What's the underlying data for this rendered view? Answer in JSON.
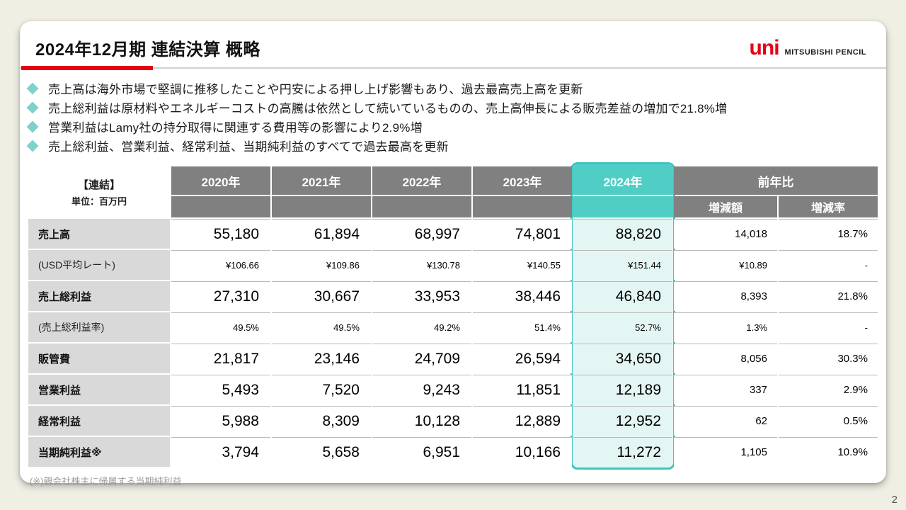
{
  "slide": {
    "title": "2024年12月期 連結決算 概略",
    "logo": {
      "mark": "uni",
      "company": "MITSUBISHI PENCIL"
    },
    "bullets": [
      "売上高は海外市場で堅調に推移したことや円安による押し上げ影響もあり、過去最高売上高を更新",
      "売上総利益は原材料やエネルギーコストの高騰は依然として続いているものの、売上高伸長による販売差益の増加で21.8%増",
      "営業利益はLamy社の持分取得に関連する費用等の影響により2.9%増",
      "売上総利益、営業利益、経常利益、当期純利益のすべてで過去最高を更新"
    ],
    "footnote": "(※)親会社株主に帰属する当期純利益",
    "page_number": "2"
  },
  "table": {
    "corner_label_line1": "【連結】",
    "corner_label_line2": "単位：百万円",
    "year_headers": [
      "2020年",
      "2021年",
      "2022年",
      "2023年",
      "2024年"
    ],
    "yoy_header": "前年比",
    "yoy_subheaders": [
      "増減額",
      "増減率"
    ],
    "highlight_year": "2024年",
    "rows": [
      {
        "label": "売上高",
        "emphasis": true,
        "values": [
          "55,180",
          "61,894",
          "68,997",
          "74,801",
          "88,820"
        ],
        "diff": "14,018",
        "rate": "18.7%"
      },
      {
        "label": "(USD平均レート)",
        "emphasis": false,
        "values": [
          "¥106.66",
          "¥109.86",
          "¥130.78",
          "¥140.55",
          "¥151.44"
        ],
        "diff": "¥10.89",
        "rate": "-"
      },
      {
        "label": "売上総利益",
        "emphasis": true,
        "values": [
          "27,310",
          "30,667",
          "33,953",
          "38,446",
          "46,840"
        ],
        "diff": "8,393",
        "rate": "21.8%"
      },
      {
        "label": "(売上総利益率)",
        "emphasis": false,
        "values": [
          "49.5%",
          "49.5%",
          "49.2%",
          "51.4%",
          "52.7%"
        ],
        "diff": "1.3%",
        "rate": "-"
      },
      {
        "label": "販管費",
        "emphasis": true,
        "values": [
          "21,817",
          "23,146",
          "24,709",
          "26,594",
          "34,650"
        ],
        "diff": "8,056",
        "rate": "30.3%"
      },
      {
        "label": "営業利益",
        "emphasis": true,
        "values": [
          "5,493",
          "7,520",
          "9,243",
          "11,851",
          "12,189"
        ],
        "diff": "337",
        "rate": "2.9%"
      },
      {
        "label": "経常利益",
        "emphasis": true,
        "values": [
          "5,988",
          "8,309",
          "10,128",
          "12,889",
          "12,952"
        ],
        "diff": "62",
        "rate": "0.5%"
      },
      {
        "label": "当期純利益※",
        "emphasis": true,
        "values": [
          "3,794",
          "5,658",
          "6,951",
          "10,166",
          "11,272"
        ],
        "diff": "1,105",
        "rate": "10.9%"
      }
    ]
  },
  "colors": {
    "brand_red": "#e60012",
    "highlight_teal": "#50cec5",
    "highlight_border": "#3ec6bd",
    "highlight_fill": "#e4f6f4",
    "header_gray": "#808080",
    "label_gray": "#d9d9d9",
    "background_cream": "#f0efe4"
  }
}
